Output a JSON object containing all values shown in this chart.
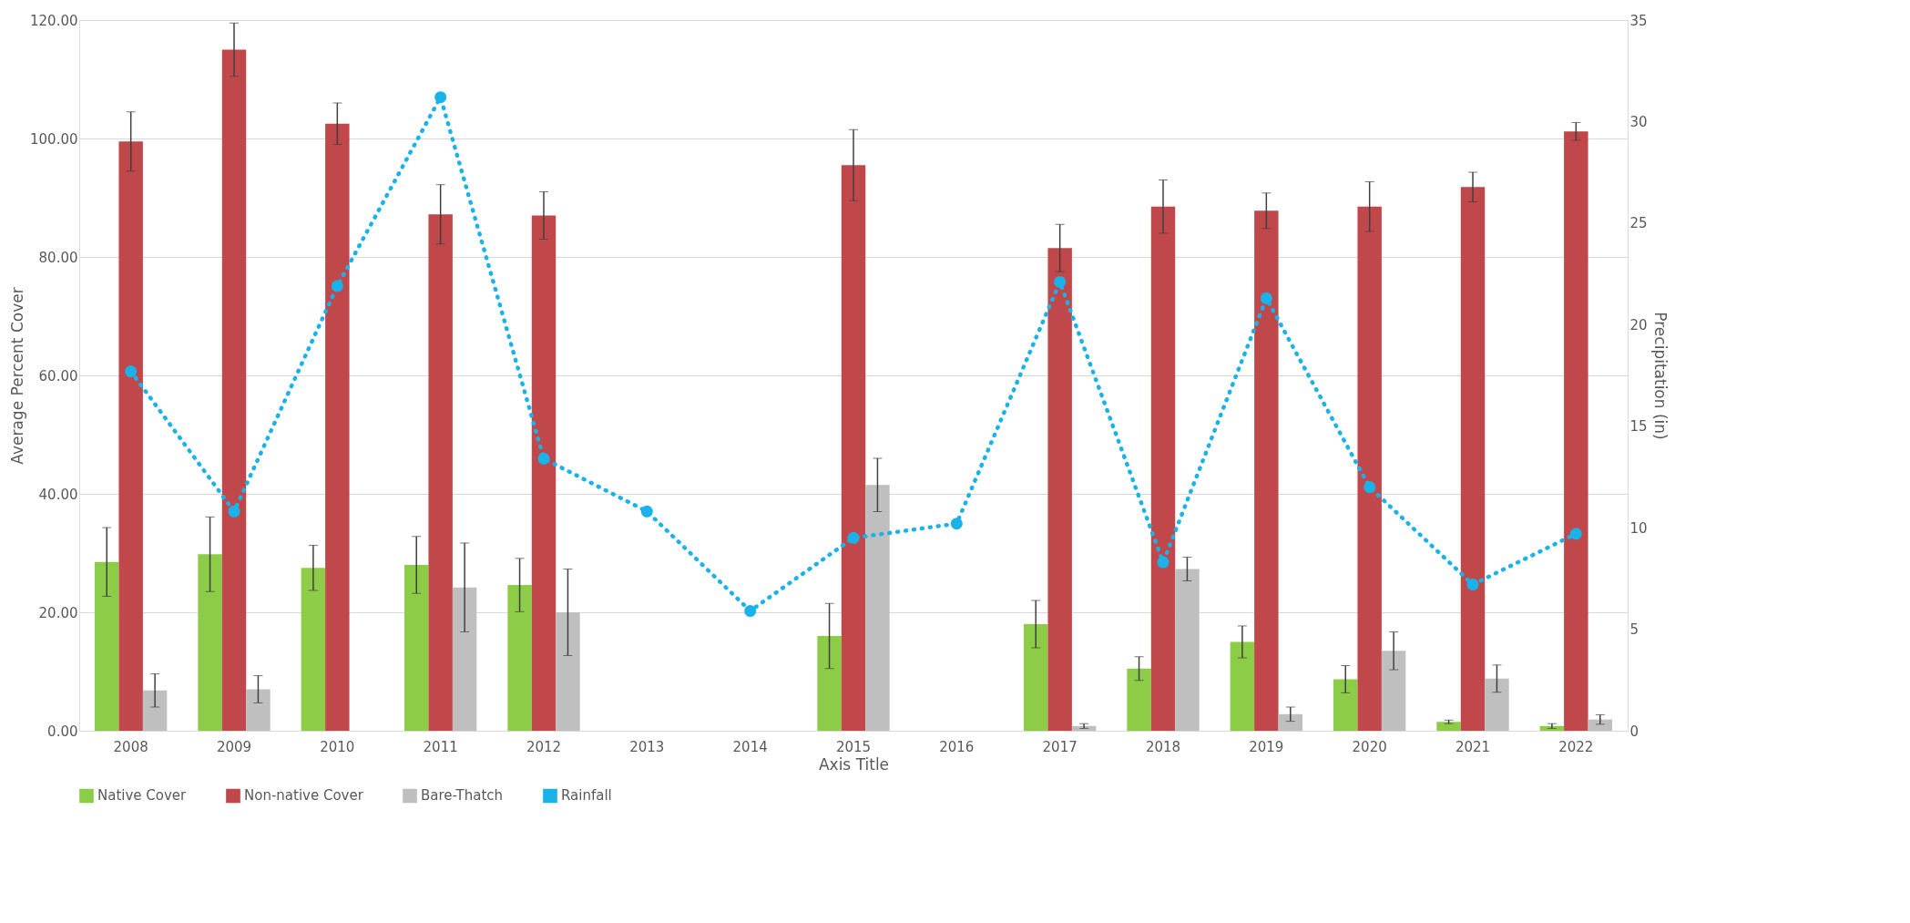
{
  "chart_data": {
    "type": "bar",
    "xlabel": "Axis Title",
    "ylabel": "Average Percent Cover",
    "y2label": "Precipitation (in)",
    "categories": [
      "2008",
      "2009",
      "2010",
      "2011",
      "2012",
      "2013",
      "2014",
      "2015",
      "2016",
      "2017",
      "2018",
      "2019",
      "2020",
      "2021",
      "2022"
    ],
    "series": [
      {
        "name": "Native Cover",
        "color": "#8ccc46",
        "values": [
          28.5,
          29.8,
          27.5,
          28.0,
          24.6,
          null,
          null,
          16.0,
          null,
          18.0,
          10.5,
          15.0,
          8.7,
          1.5,
          0.8
        ],
        "errors": [
          5.8,
          6.3,
          3.8,
          4.8,
          4.5,
          null,
          null,
          5.5,
          null,
          4.0,
          2.0,
          2.7,
          2.3,
          0.3,
          0.4
        ]
      },
      {
        "name": "Non-native Cover",
        "color": "#c0474a",
        "values": [
          99.5,
          115.0,
          102.5,
          87.2,
          87.0,
          null,
          null,
          95.5,
          null,
          81.5,
          88.5,
          87.8,
          88.5,
          91.8,
          101.2
        ],
        "errors": [
          5.0,
          4.5,
          3.5,
          5.0,
          4.0,
          null,
          null,
          6.0,
          null,
          4.0,
          4.5,
          3.0,
          4.2,
          2.5,
          1.5
        ]
      },
      {
        "name": "Bare-Thatch",
        "color": "#bfbfbf",
        "values": [
          6.8,
          7.0,
          null,
          24.2,
          20.0,
          null,
          null,
          41.5,
          null,
          0.8,
          27.3,
          2.8,
          13.5,
          8.8,
          1.9
        ],
        "errors": [
          2.8,
          2.3,
          null,
          7.5,
          7.3,
          null,
          null,
          4.5,
          null,
          0.4,
          2.0,
          1.2,
          3.2,
          2.3,
          0.8
        ]
      },
      {
        "name": "Rainfall",
        "type": "line",
        "axis": "y2",
        "color": "#1ab2e8",
        "marker": "circle",
        "line_style": "dotted",
        "values": [
          17.7,
          10.8,
          21.9,
          31.2,
          13.4,
          10.8,
          5.9,
          9.5,
          10.2,
          22.1,
          8.3,
          21.3,
          12.0,
          7.2,
          9.7
        ]
      }
    ],
    "ylim": [
      0,
      120
    ],
    "yticks": [
      {
        "value": 0,
        "label": "0.00"
      },
      {
        "value": 20,
        "label": "20.00"
      },
      {
        "value": 40,
        "label": "40.00"
      },
      {
        "value": 60,
        "label": "60.00"
      },
      {
        "value": 80,
        "label": "80.00"
      },
      {
        "value": 100,
        "label": "100.00"
      },
      {
        "value": 120,
        "label": "120.00"
      }
    ],
    "y2lim": [
      0,
      35
    ],
    "y2ticks": [
      0,
      5,
      10,
      15,
      20,
      25,
      30,
      35
    ],
    "grid": "y",
    "legend": "bottom"
  }
}
